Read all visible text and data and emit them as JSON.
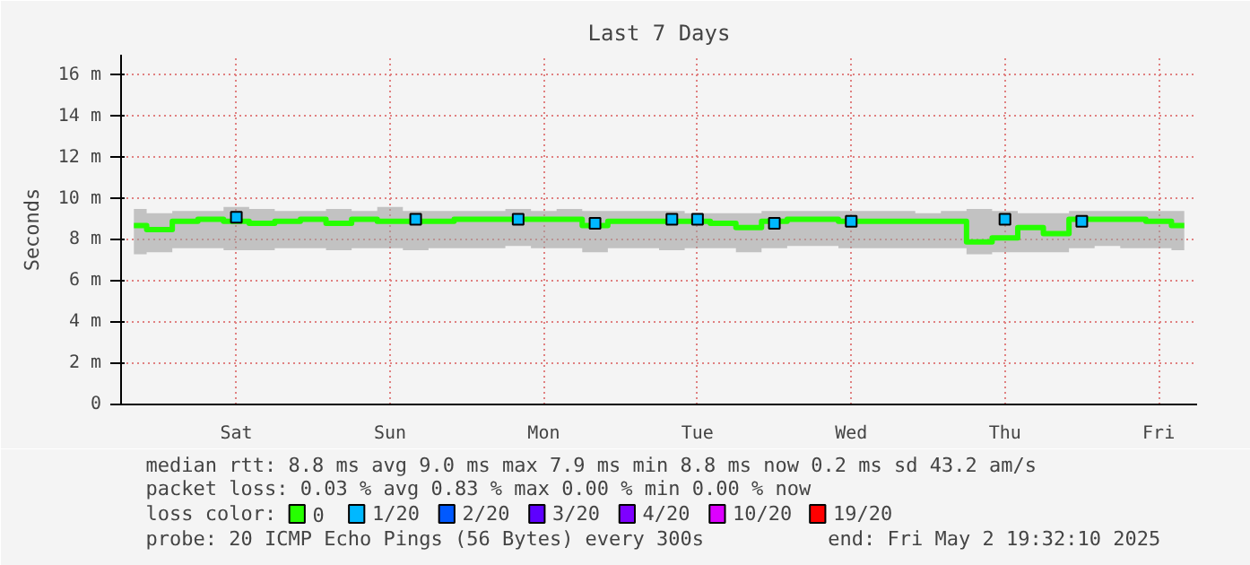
{
  "chart_data": {
    "type": "step",
    "title": "Last 7 Days",
    "ylabel": "Seconds",
    "legend_title": "loss color:",
    "categories": [
      null,
      null,
      null,
      null,
      "Sat",
      null,
      null,
      null,
      null,
      null,
      "Sun",
      null,
      null,
      null,
      null,
      null,
      "Mon",
      null,
      null,
      null,
      null,
      null,
      "Tue",
      null,
      null,
      null,
      null,
      null,
      "Wed",
      null,
      null,
      null,
      null,
      null,
      "Thu",
      null,
      null,
      null,
      null,
      null,
      "Fri",
      null
    ],
    "ylim": [
      0,
      17
    ],
    "yticks": [
      0,
      {
        "value": 2,
        "label": "2 m"
      },
      {
        "value": 4,
        "label": "4 m"
      },
      {
        "value": 6,
        "label": "6 m"
      },
      {
        "value": 8,
        "label": "8 m"
      },
      {
        "value": 10,
        "label": "10 m"
      },
      {
        "value": 12,
        "label": "12 m"
      },
      {
        "value": 14,
        "label": "14 m"
      },
      {
        "value": 16,
        "label": "16 m"
      }
    ],
    "grid": true,
    "legend": "bottom",
    "marker": "none",
    "line_style": "solid",
    "series": [
      {
        "name": "0",
        "color": "#26ff00",
        "values": [
          8.7,
          8.5,
          8.9,
          9.0,
          8.9,
          8.8,
          8.9,
          9.0,
          8.8,
          9.0,
          8.9,
          8.9,
          8.9,
          9.0,
          9.0,
          9.0,
          9.0,
          9.0,
          8.7,
          8.9,
          8.9,
          8.9,
          8.9,
          8.8,
          8.6,
          8.9,
          9.0,
          9.0,
          8.9,
          8.9,
          8.9,
          8.9,
          8.9,
          7.9,
          8.1,
          8.6,
          8.3,
          9.0,
          9.0,
          9.0,
          8.9,
          8.7
        ],
        "lower": [
          7.3,
          7.4,
          7.6,
          7.6,
          7.5,
          7.5,
          7.6,
          7.6,
          7.5,
          7.6,
          7.6,
          7.5,
          7.6,
          7.6,
          7.6,
          7.7,
          7.6,
          7.6,
          7.4,
          7.6,
          7.6,
          7.5,
          7.6,
          7.6,
          7.4,
          7.6,
          7.7,
          7.7,
          7.6,
          7.6,
          7.6,
          7.6,
          7.6,
          7.3,
          7.4,
          7.4,
          7.4,
          7.6,
          7.7,
          7.6,
          7.6,
          7.5
        ],
        "upper": [
          9.5,
          9.3,
          9.4,
          9.4,
          9.6,
          9.5,
          9.4,
          9.4,
          9.5,
          9.4,
          9.6,
          9.4,
          9.4,
          9.4,
          9.4,
          9.5,
          9.4,
          9.5,
          9.4,
          9.4,
          9.4,
          9.4,
          9.3,
          9.3,
          9.3,
          9.4,
          9.4,
          9.4,
          9.4,
          9.4,
          9.4,
          9.3,
          9.4,
          9.5,
          9.4,
          9.3,
          9.3,
          9.4,
          9.4,
          9.4,
          9.4,
          9.4
        ]
      },
      {
        "name": "1/20",
        "color": "#00b8ff",
        "type": "scatter",
        "marker": "square",
        "values": [
          null,
          null,
          null,
          null,
          9.1,
          null,
          null,
          null,
          null,
          null,
          null,
          9.0,
          null,
          null,
          null,
          9.0,
          null,
          null,
          8.8,
          null,
          null,
          9.0,
          9.0,
          null,
          null,
          8.8,
          null,
          null,
          8.9,
          null,
          null,
          null,
          null,
          null,
          9.0,
          null,
          null,
          8.9,
          null,
          null,
          null,
          null
        ]
      },
      {
        "name": "2/20",
        "color": "#0059ff",
        "type": "scatter",
        "marker": "square",
        "values": [
          null,
          null,
          null,
          null,
          null,
          null,
          null,
          null,
          null,
          null,
          null,
          null,
          null,
          null,
          null,
          null,
          null,
          null,
          null,
          null,
          null,
          null,
          null,
          null,
          null,
          null,
          null,
          null,
          null,
          null,
          null,
          null,
          null,
          null,
          null,
          null,
          null,
          null,
          null,
          null,
          null,
          null
        ]
      },
      {
        "name": "3/20",
        "color": "#5e00ff",
        "type": "scatter",
        "marker": "square",
        "values": [
          null,
          null,
          null,
          null,
          null,
          null,
          null,
          null,
          null,
          null,
          null,
          null,
          null,
          null,
          null,
          null,
          null,
          null,
          null,
          null,
          null,
          null,
          null,
          null,
          null,
          null,
          null,
          null,
          null,
          null,
          null,
          null,
          null,
          null,
          null,
          null,
          null,
          null,
          null,
          null,
          null,
          null
        ]
      },
      {
        "name": "4/20",
        "color": "#7e00ff",
        "type": "scatter",
        "marker": "square",
        "values": [
          null,
          null,
          null,
          null,
          null,
          null,
          null,
          null,
          null,
          null,
          null,
          null,
          null,
          null,
          null,
          null,
          null,
          null,
          null,
          null,
          null,
          null,
          null,
          null,
          null,
          null,
          null,
          null,
          null,
          null,
          null,
          null,
          null,
          null,
          null,
          null,
          null,
          null,
          null,
          null,
          null,
          null
        ]
      },
      {
        "name": "10/20",
        "color": "#dd00ff",
        "type": "scatter",
        "marker": "square",
        "values": [
          null,
          null,
          null,
          null,
          null,
          null,
          null,
          null,
          null,
          null,
          null,
          null,
          null,
          null,
          null,
          null,
          null,
          null,
          null,
          null,
          null,
          null,
          null,
          null,
          null,
          null,
          null,
          null,
          null,
          null,
          null,
          null,
          null,
          null,
          null,
          null,
          null,
          null,
          null,
          null,
          null,
          null
        ]
      },
      {
        "name": "19/20",
        "color": "#ff0000",
        "type": "scatter",
        "marker": "square",
        "values": [
          null,
          null,
          null,
          null,
          null,
          null,
          null,
          null,
          null,
          null,
          null,
          null,
          null,
          null,
          null,
          null,
          null,
          null,
          null,
          null,
          null,
          null,
          null,
          null,
          null,
          null,
          null,
          null,
          null,
          null,
          null,
          null,
          null,
          null,
          null,
          null,
          null,
          null,
          null,
          null,
          null,
          null
        ]
      }
    ],
    "annotations": [
      "median rtt:  8.8 ms avg  9.0 ms max  7.9 ms min  8.8 ms now  0.2 ms sd  43.2   am/s",
      "packet loss: 0.03 % avg  0.83 % max  0.00 % min  0.00 % now",
      "probe:       20 ICMP Echo Pings (56 Bytes) every 300s",
      "end: Fri May  2 19:32:10 2025"
    ]
  }
}
